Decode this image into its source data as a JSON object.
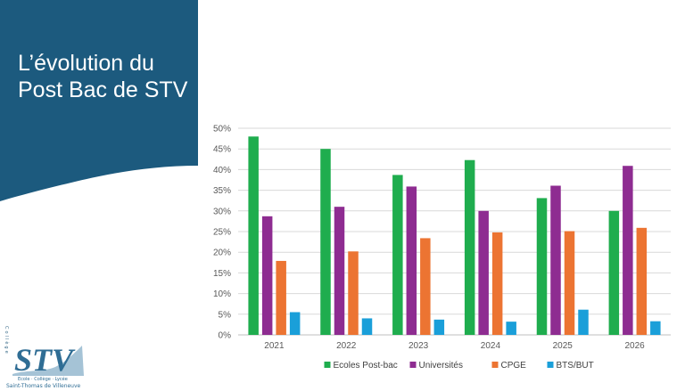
{
  "slide": {
    "title_line1": "L’évolution du",
    "title_line2": "Post Bac de STV",
    "banner_color": "#1c5a7e"
  },
  "logo": {
    "text": "STV",
    "side_text": "Collège",
    "subtitle": "Ecole · Collège · Lycée",
    "name": "Saint-Thomas de Villeneuve"
  },
  "chart_data": {
    "type": "bar",
    "title": "",
    "xlabel": "",
    "ylabel": "",
    "ylim": [
      0,
      50
    ],
    "yticks": [
      "0%",
      "5%",
      "10%",
      "15%",
      "20%",
      "25%",
      "30%",
      "35%",
      "40%",
      "45%",
      "50%"
    ],
    "grid": true,
    "legend": "bottom",
    "categories": [
      "2021",
      "2022",
      "2023",
      "2024",
      "2025",
      "2026"
    ],
    "series": [
      {
        "name": "Ecoles Post-bac",
        "color": "#1fad4e",
        "values": [
          48,
          45,
          38.7,
          42.3,
          33.1,
          30
        ]
      },
      {
        "name": "Universités",
        "color": "#8e2c91",
        "values": [
          28.7,
          31,
          35.9,
          30,
          36.1,
          40.9
        ]
      },
      {
        "name": "CPGE",
        "color": "#ec7432",
        "values": [
          17.9,
          20.2,
          23.4,
          24.8,
          25.1,
          25.9
        ]
      },
      {
        "name": "BTS/BUT",
        "color": "#1a9fd9",
        "values": [
          5.5,
          4,
          3.7,
          3.2,
          6.1,
          3.3
        ]
      }
    ]
  }
}
